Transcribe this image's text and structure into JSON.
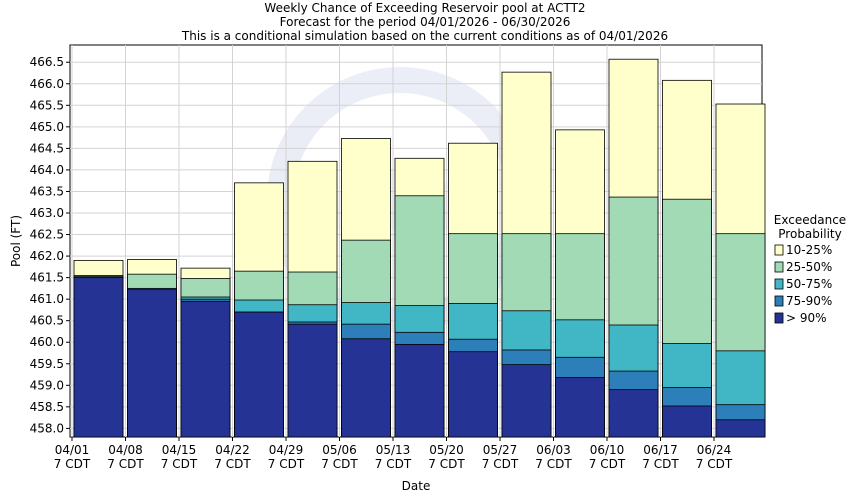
{
  "chart_data": {
    "type": "bar",
    "title": [
      "Weekly Chance of Exceeding Reservoir pool at ACTT2",
      "Forecast for the period 04/01/2026 - 06/30/2026",
      "This is a conditional simulation based on the current conditions as of 04/01/2026"
    ],
    "xlabel": "Date",
    "ylabel": "Pool (FT)",
    "ylim": [
      457.8,
      466.9
    ],
    "yticks": [
      458.0,
      458.5,
      459.0,
      459.5,
      460.0,
      460.5,
      461.0,
      461.5,
      462.0,
      462.5,
      463.0,
      463.5,
      464.0,
      464.5,
      465.0,
      465.5,
      466.0,
      466.5
    ],
    "ytick_labels": [
      "458.0",
      "458.5",
      "459.0",
      "459.5",
      "460.0",
      "460.5",
      "461.0",
      "461.5",
      "462.0",
      "462.5",
      "463.0",
      "463.5",
      "464.0",
      "464.5",
      "465.0",
      "465.5",
      "466.0",
      "466.5"
    ],
    "categories": [
      "04/01\n7 CDT",
      "04/08\n7 CDT",
      "04/15\n7 CDT",
      "04/22\n7 CDT",
      "04/29\n7 CDT",
      "05/06\n7 CDT",
      "05/13\n7 CDT",
      "05/20\n7 CDT",
      "05/27\n7 CDT",
      "06/03\n7 CDT",
      "06/10\n7 CDT",
      "06/17\n7 CDT",
      "06/24\n7 CDT"
    ],
    "grid": true,
    "legend_position": "right",
    "legend_title": [
      "Exceedance",
      "Probability"
    ],
    "series": [
      {
        "name": "> 90%",
        "color": "#253494",
        "values": [
          461.5,
          461.22,
          460.95,
          460.7,
          460.42,
          460.08,
          459.95,
          459.78,
          459.48,
          459.18,
          458.9,
          458.52,
          458.2
        ]
      },
      {
        "name": "75-90%",
        "color": "#2c7fb8",
        "values": [
          461.52,
          461.25,
          461.0,
          460.7,
          460.47,
          460.42,
          460.23,
          460.07,
          459.82,
          459.65,
          459.33,
          458.95,
          458.55
        ]
      },
      {
        "name": "50-75%",
        "color": "#41b6c4",
        "values": [
          461.52,
          461.25,
          461.05,
          460.98,
          460.87,
          460.92,
          460.85,
          460.9,
          460.73,
          460.52,
          460.4,
          459.97,
          459.8
        ]
      },
      {
        "name": "25-50%",
        "color": "#a1dab4",
        "values": [
          461.55,
          461.58,
          461.48,
          461.65,
          461.63,
          462.37,
          463.4,
          462.52,
          462.52,
          462.52,
          463.37,
          463.32,
          462.52
        ]
      },
      {
        "name": "10-25%",
        "color": "#ffffcc",
        "values": [
          461.9,
          461.92,
          461.72,
          463.7,
          464.2,
          464.73,
          464.27,
          464.62,
          466.27,
          464.93,
          466.57,
          466.08,
          465.53
        ]
      }
    ]
  }
}
